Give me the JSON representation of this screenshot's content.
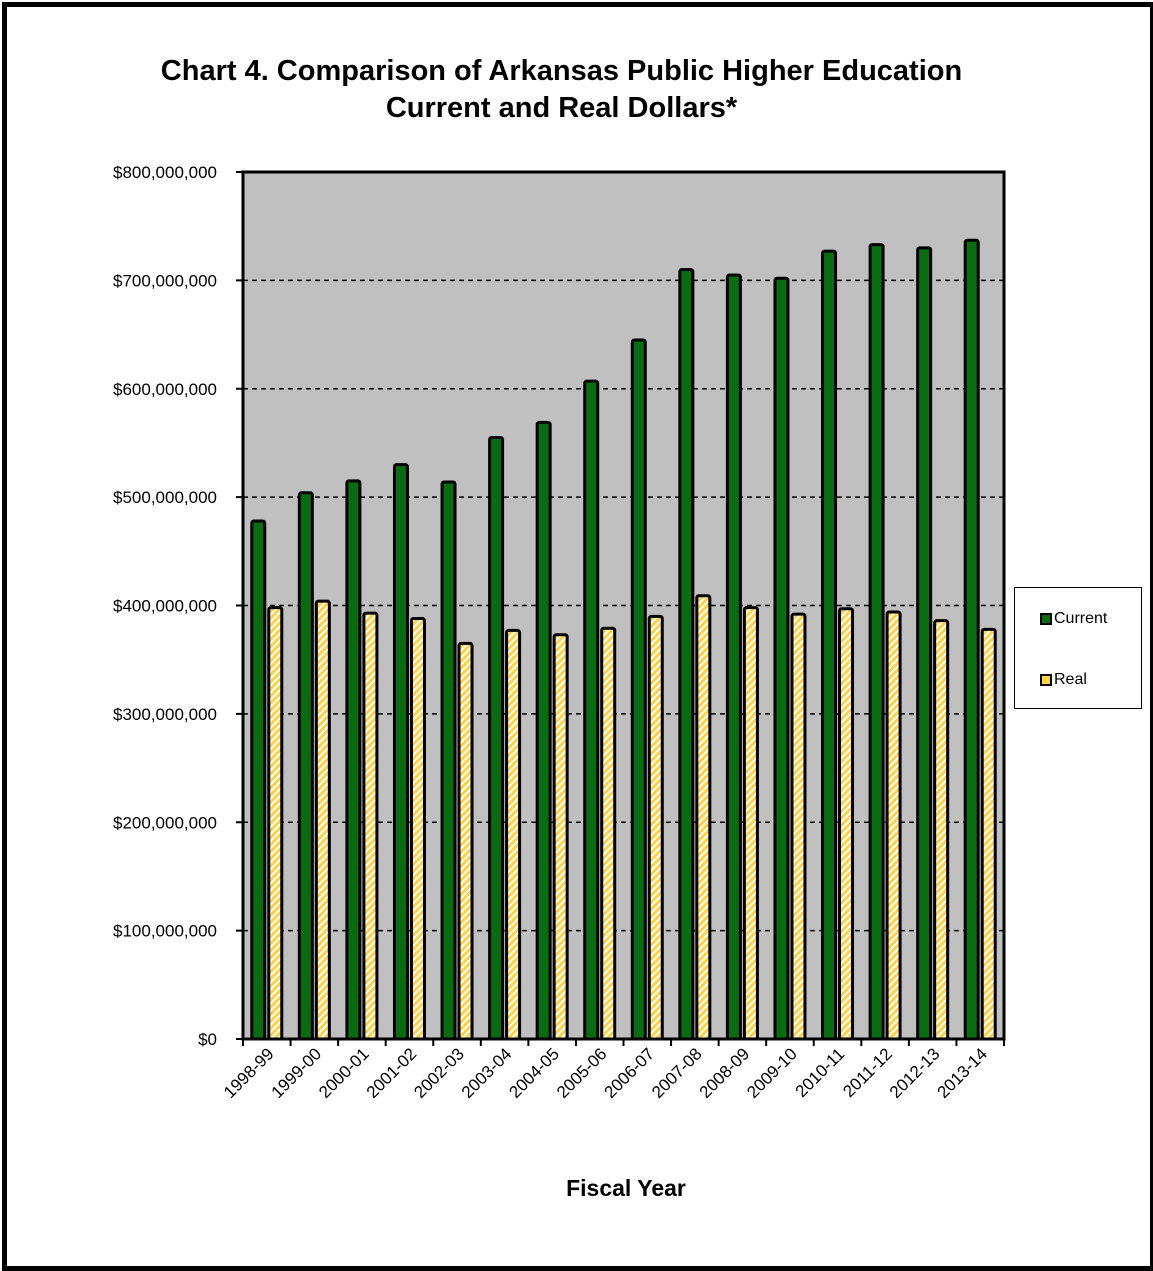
{
  "chart_data": {
    "type": "bar",
    "title": "Chart 4. Comparison of Arkansas Public Higher Education",
    "subtitle": "Current and Real Dollars*",
    "xlabel": "Fiscal Year",
    "ylabel": "",
    "ylim": [
      0,
      800000000
    ],
    "yticks": [
      0,
      100000000,
      200000000,
      300000000,
      400000000,
      500000000,
      600000000,
      700000000,
      800000000
    ],
    "ytick_labels": [
      "$0",
      "$100,000,000",
      "$200,000,000",
      "$300,000,000",
      "$400,000,000",
      "$500,000,000",
      "$600,000,000",
      "$700,000,000",
      "$800,000,000"
    ],
    "categories": [
      "1998-99",
      "1999-00",
      "2000-01",
      "2001-02",
      "2002-03",
      "2003-04",
      "2004-05",
      "2005-06",
      "2006-07",
      "2007-08",
      "2008-09",
      "2009-10",
      "2010-11",
      "2011-12",
      "2012-13",
      "2013-14"
    ],
    "series": [
      {
        "name": "Current",
        "color": "#0b6b12",
        "values": [
          478000000,
          504000000,
          515000000,
          530000000,
          514000000,
          555000000,
          569000000,
          607000000,
          645000000,
          710000000,
          705000000,
          702000000,
          727000000,
          733000000,
          730000000,
          737000000
        ]
      },
      {
        "name": "Real",
        "color": "#ffd24a",
        "values": [
          398000000,
          404000000,
          393000000,
          388000000,
          365000000,
          377000000,
          373000000,
          379000000,
          390000000,
          409000000,
          398000000,
          392000000,
          397000000,
          394000000,
          386000000,
          378000000
        ]
      }
    ],
    "grid": true,
    "plot_background": "#c0c0c0",
    "legend_position": "right"
  }
}
